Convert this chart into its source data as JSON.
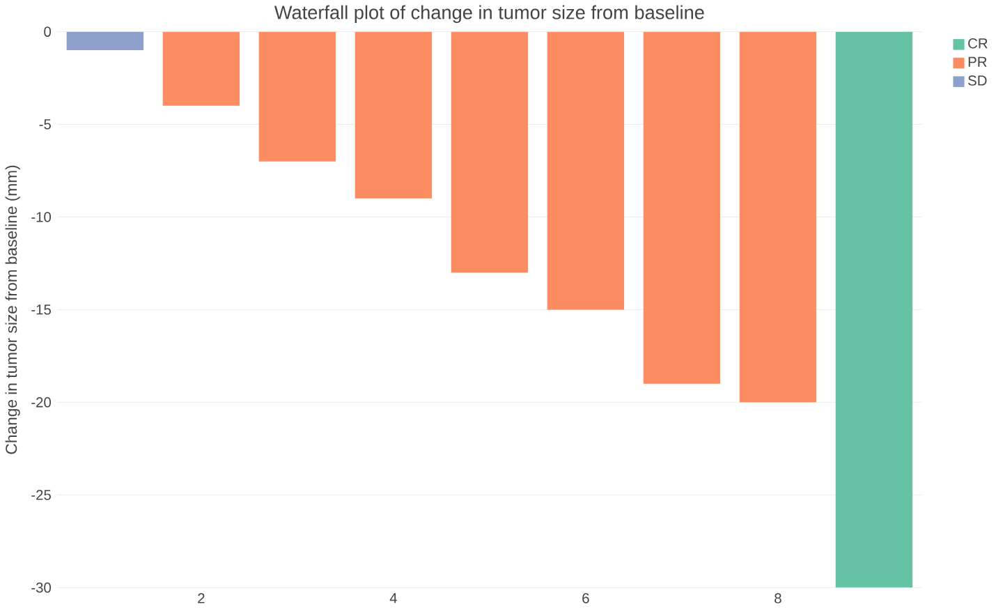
{
  "chart_data": {
    "type": "bar",
    "title": "Waterfall plot of change in tumor size from baseline",
    "ylabel": "Change in tumor size from baseline (mm)",
    "series": [
      {
        "name": "CR",
        "color": "#66c2a5",
        "x": [
          9
        ],
        "values": [
          -30
        ]
      },
      {
        "name": "PR",
        "color": "#fc8d62",
        "x": [
          2,
          3,
          4,
          5,
          6,
          7,
          8
        ],
        "values": [
          -4,
          -7,
          -9,
          -13,
          -15,
          -19,
          -20
        ]
      },
      {
        "name": "SD",
        "color": "#8da0cb",
        "x": [
          1
        ],
        "values": [
          -1
        ]
      }
    ],
    "xlim": [
      0.5,
      9.5
    ],
    "xticks": [
      2,
      4,
      6,
      8
    ],
    "ylim": [
      -30,
      0
    ],
    "yticks": [
      0,
      -5,
      -10,
      -15,
      -20,
      -25,
      -30
    ],
    "grid": "y",
    "legend": "top right"
  }
}
